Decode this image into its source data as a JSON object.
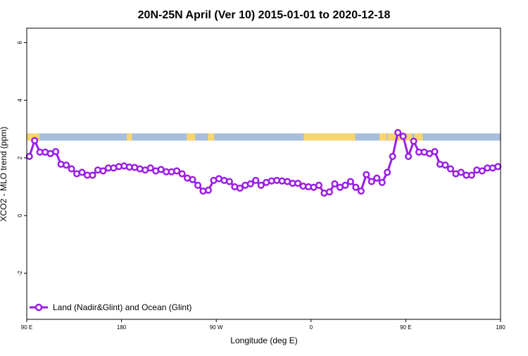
{
  "chart_data": {
    "type": "line",
    "title": "20N-25N April (Ver 10)   2015-01-01 to 2020-12-18",
    "xlabel": "Longitude (deg E)",
    "ylabel": "XCO2 - MLO trend (ppm)",
    "x_tick_labels": [
      "90 E",
      "180",
      "90 W",
      "0",
      "90 E",
      "180"
    ],
    "y_tick_labels": [
      "-2",
      "0",
      "2",
      "4",
      "6"
    ],
    "x_tick_values": [
      90,
      180,
      270,
      360,
      450,
      540
    ],
    "y_tick_values": [
      -2,
      0,
      2,
      4,
      6
    ],
    "xlim": [
      90,
      540
    ],
    "ylim": [
      -3.6,
      6.5
    ],
    "grid": false,
    "legend_position": "bottom-left",
    "map_band": {
      "ymin": 2.6,
      "ymax": 2.85,
      "ocean_color": "#a7bedc",
      "land_color": "#f7d56f"
    },
    "series": [
      {
        "name": "Land (Nadir&Glint) and Ocean (Glint)",
        "color": "#9a1ee6",
        "x": [
          92.5,
          97.5,
          102.5,
          107.5,
          112.5,
          117.5,
          122.5,
          127.5,
          132.5,
          137.5,
          142.5,
          147.5,
          152.5,
          157.5,
          162.5,
          167.5,
          172.5,
          177.5,
          182.5,
          187.5,
          192.5,
          197.5,
          202.5,
          207.5,
          212.5,
          217.5,
          222.5,
          227.5,
          232.5,
          237.5,
          242.5,
          247.5,
          252.5,
          257.5,
          262.5,
          267.5,
          272.5,
          277.5,
          282.5,
          287.5,
          292.5,
          297.5,
          302.5,
          307.5,
          312.5,
          317.5,
          322.5,
          327.5,
          332.5,
          337.5,
          342.5,
          347.5,
          352.5,
          357.5,
          362.5,
          367.5,
          372.5,
          377.5,
          382.5,
          387.5,
          392.5,
          397.5,
          402.5,
          407.5,
          412.5,
          417.5,
          422.5,
          427.5,
          432.5,
          437.5,
          442.5,
          447.5,
          452.5,
          457.5,
          462.5,
          467.5,
          472.5,
          477.5,
          482.5,
          487.5,
          492.5,
          497.5,
          502.5,
          507.5,
          512.5,
          517.5,
          522.5,
          527.5,
          532.5,
          537.5
        ],
        "y": [
          2.05,
          2.6,
          2.2,
          2.2,
          2.15,
          2.22,
          1.78,
          1.75,
          1.62,
          1.45,
          1.5,
          1.4,
          1.4,
          1.58,
          1.55,
          1.65,
          1.65,
          1.7,
          1.72,
          1.68,
          1.67,
          1.62,
          1.58,
          1.65,
          1.55,
          1.6,
          1.52,
          1.52,
          1.55,
          1.45,
          1.3,
          1.25,
          1.05,
          0.85,
          0.88,
          1.22,
          1.28,
          1.22,
          1.18,
          1.0,
          0.95,
          1.05,
          1.1,
          1.22,
          1.05,
          1.15,
          1.2,
          1.22,
          1.2,
          1.18,
          1.12,
          1.12,
          1.02,
          1.0,
          0.98,
          1.05,
          0.78,
          0.82,
          1.1,
          0.98,
          1.05,
          1.18,
          0.98,
          0.85,
          1.42,
          1.18,
          1.3,
          1.15,
          1.5,
          2.05,
          2.88,
          2.75,
          2.05,
          2.58,
          2.2,
          2.2,
          2.15,
          2.22,
          1.78,
          1.75,
          1.62,
          1.45,
          1.5,
          1.4,
          1.4,
          1.58,
          1.55,
          1.65,
          1.65,
          1.7
        ]
      }
    ]
  }
}
